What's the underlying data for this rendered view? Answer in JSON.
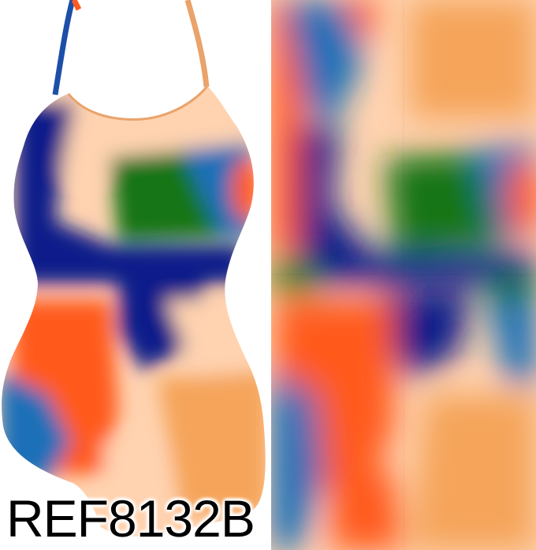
{
  "product": {
    "reference_code": "REF8132B"
  },
  "palette": {
    "navy": "#0a1f8a",
    "royal_blue": "#1d6fb8",
    "orange_red": "#ff5a1f",
    "peach": "#ffd3b0",
    "light_orange": "#f5a45a",
    "green": "#157515",
    "strap": "#e9a36b",
    "background": "#ffffff"
  }
}
